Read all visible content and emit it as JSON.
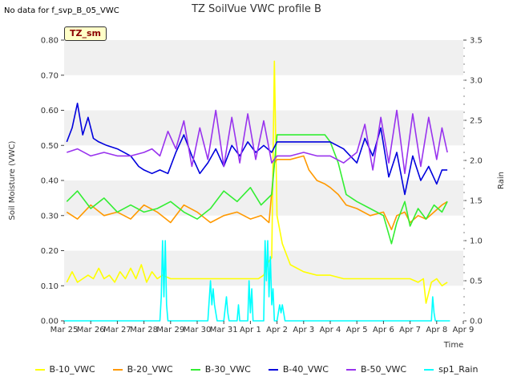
{
  "chart_data": {
    "type": "line",
    "title": "TZ SoilVue VWC profile B",
    "note": "No data for f_svp_B_05_VWC",
    "badge": "TZ_sm",
    "xlabel": "Time",
    "ylabel": "Soil Moisture (VWC)",
    "y2label": "Rain",
    "ylim": [
      0,
      0.8
    ],
    "y2lim": [
      0,
      3.5
    ],
    "xlim": [
      0,
      15
    ],
    "grid": "horizontal-bands",
    "legend_position": "bottom",
    "yticks": [
      "0.00",
      "0.10",
      "0.20",
      "0.30",
      "0.40",
      "0.50",
      "0.60",
      "0.70",
      "0.80"
    ],
    "y2ticks": [
      "0.0",
      "0.5",
      "1.0",
      "1.5",
      "2.0",
      "2.5",
      "3.0",
      "3.5"
    ],
    "xticks": [
      "Mar 25",
      "Mar 26",
      "Mar 27",
      "Mar 28",
      "Mar 29",
      "Mar 30",
      "Mar 31",
      "Apr 1",
      "Apr 2",
      "Apr 3",
      "Apr 4",
      "Apr 5",
      "Apr 6",
      "Apr 7",
      "Apr 8",
      "Apr 9"
    ],
    "series": [
      {
        "name": "B-10_VWC",
        "color": "#ffff00",
        "axis": "left",
        "x": [
          0.1,
          0.3,
          0.5,
          0.7,
          0.9,
          1.1,
          1.3,
          1.5,
          1.7,
          1.9,
          2.1,
          2.3,
          2.5,
          2.7,
          2.9,
          3.1,
          3.3,
          3.5,
          3.7,
          4.0,
          4.5,
          5.0,
          5.5,
          6.0,
          6.5,
          7.0,
          7.3,
          7.5,
          7.6,
          7.7,
          7.8,
          7.9,
          8.0,
          8.2,
          8.5,
          9.0,
          9.5,
          10.0,
          10.5,
          11.0,
          11.5,
          12.0,
          12.5,
          13.0,
          13.3,
          13.5,
          13.6,
          13.8,
          14.0,
          14.2,
          14.4
        ],
        "y": [
          0.11,
          0.14,
          0.11,
          0.12,
          0.13,
          0.12,
          0.15,
          0.12,
          0.13,
          0.11,
          0.14,
          0.12,
          0.15,
          0.12,
          0.16,
          0.11,
          0.14,
          0.12,
          0.13,
          0.12,
          0.12,
          0.12,
          0.12,
          0.12,
          0.12,
          0.12,
          0.12,
          0.13,
          0.15,
          0.17,
          0.18,
          0.74,
          0.3,
          0.22,
          0.16,
          0.14,
          0.13,
          0.13,
          0.12,
          0.12,
          0.12,
          0.12,
          0.12,
          0.12,
          0.11,
          0.12,
          0.05,
          0.11,
          0.12,
          0.1,
          0.11
        ]
      },
      {
        "name": "B-20_VWC",
        "color": "#ff9900",
        "axis": "left",
        "x": [
          0.1,
          0.5,
          1.0,
          1.5,
          2.0,
          2.5,
          3.0,
          3.5,
          4.0,
          4.5,
          5.0,
          5.5,
          6.0,
          6.5,
          7.0,
          7.4,
          7.7,
          7.9,
          8.0,
          8.5,
          9.0,
          9.2,
          9.5,
          9.8,
          10.0,
          10.3,
          10.6,
          11.0,
          11.5,
          12.0,
          12.3,
          12.5,
          12.8,
          13.0,
          13.3,
          13.6,
          13.9,
          14.2,
          14.4
        ],
        "y": [
          0.31,
          0.29,
          0.33,
          0.3,
          0.31,
          0.29,
          0.33,
          0.31,
          0.28,
          0.33,
          0.31,
          0.28,
          0.3,
          0.31,
          0.29,
          0.3,
          0.28,
          0.45,
          0.46,
          0.46,
          0.47,
          0.43,
          0.4,
          0.39,
          0.38,
          0.36,
          0.33,
          0.32,
          0.3,
          0.31,
          0.26,
          0.3,
          0.31,
          0.28,
          0.3,
          0.29,
          0.31,
          0.33,
          0.34
        ]
      },
      {
        "name": "B-30_VWC",
        "color": "#33ee33",
        "axis": "left",
        "x": [
          0.1,
          0.5,
          1.0,
          1.5,
          2.0,
          2.5,
          3.0,
          3.5,
          4.0,
          4.5,
          5.0,
          5.5,
          6.0,
          6.5,
          7.0,
          7.4,
          7.8,
          8.0,
          8.5,
          9.0,
          9.5,
          9.8,
          10.0,
          10.3,
          10.6,
          11.0,
          11.5,
          12.0,
          12.3,
          12.5,
          12.8,
          13.0,
          13.3,
          13.6,
          13.9,
          14.2,
          14.4
        ],
        "y": [
          0.34,
          0.37,
          0.32,
          0.35,
          0.31,
          0.33,
          0.31,
          0.32,
          0.34,
          0.31,
          0.29,
          0.32,
          0.37,
          0.34,
          0.38,
          0.33,
          0.36,
          0.53,
          0.53,
          0.53,
          0.53,
          0.53,
          0.51,
          0.45,
          0.36,
          0.34,
          0.32,
          0.3,
          0.22,
          0.28,
          0.34,
          0.27,
          0.32,
          0.29,
          0.33,
          0.31,
          0.34
        ]
      },
      {
        "name": "B-40_VWC",
        "color": "#0000dd",
        "axis": "left",
        "x": [
          0.1,
          0.3,
          0.5,
          0.7,
          0.9,
          1.1,
          1.3,
          1.6,
          2.0,
          2.5,
          2.8,
          3.0,
          3.3,
          3.6,
          3.9,
          4.2,
          4.5,
          4.8,
          5.1,
          5.4,
          5.7,
          6.0,
          6.3,
          6.6,
          6.9,
          7.2,
          7.5,
          7.8,
          8.0,
          8.5,
          9.0,
          9.5,
          10.0,
          10.5,
          11.0,
          11.3,
          11.6,
          11.9,
          12.2,
          12.5,
          12.8,
          13.1,
          13.4,
          13.7,
          14.0,
          14.2,
          14.4
        ],
        "y": [
          0.51,
          0.55,
          0.62,
          0.53,
          0.58,
          0.52,
          0.51,
          0.5,
          0.49,
          0.47,
          0.44,
          0.43,
          0.42,
          0.43,
          0.42,
          0.48,
          0.53,
          0.47,
          0.42,
          0.45,
          0.49,
          0.44,
          0.5,
          0.47,
          0.51,
          0.48,
          0.5,
          0.48,
          0.51,
          0.51,
          0.51,
          0.51,
          0.51,
          0.49,
          0.45,
          0.52,
          0.47,
          0.55,
          0.41,
          0.48,
          0.36,
          0.47,
          0.4,
          0.44,
          0.39,
          0.43,
          0.43
        ]
      },
      {
        "name": "B-50_VWC",
        "color": "#9933ee",
        "axis": "left",
        "x": [
          0.1,
          0.5,
          1.0,
          1.5,
          2.0,
          2.5,
          3.0,
          3.3,
          3.6,
          3.9,
          4.2,
          4.5,
          4.8,
          5.1,
          5.4,
          5.7,
          6.0,
          6.3,
          6.6,
          6.9,
          7.2,
          7.5,
          7.8,
          8.0,
          8.5,
          9.0,
          9.5,
          10.0,
          10.5,
          11.0,
          11.3,
          11.6,
          11.9,
          12.2,
          12.5,
          12.8,
          13.1,
          13.4,
          13.7,
          14.0,
          14.2,
          14.4
        ],
        "y": [
          0.48,
          0.49,
          0.47,
          0.48,
          0.47,
          0.47,
          0.48,
          0.49,
          0.47,
          0.54,
          0.49,
          0.57,
          0.44,
          0.55,
          0.46,
          0.6,
          0.44,
          0.58,
          0.45,
          0.59,
          0.46,
          0.57,
          0.45,
          0.47,
          0.47,
          0.48,
          0.47,
          0.47,
          0.45,
          0.48,
          0.56,
          0.43,
          0.58,
          0.45,
          0.6,
          0.42,
          0.59,
          0.44,
          0.58,
          0.46,
          0.55,
          0.48
        ]
      },
      {
        "name": "sp1_Rain",
        "color": "#00ffff",
        "axis": "right",
        "x": [
          0,
          3.6,
          3.65,
          3.7,
          3.75,
          3.8,
          3.85,
          3.9,
          5.4,
          5.5,
          5.55,
          5.6,
          5.65,
          5.75,
          6.0,
          6.1,
          6.15,
          6.2,
          6.5,
          6.55,
          6.6,
          6.9,
          6.95,
          7.0,
          7.05,
          7.1,
          7.5,
          7.55,
          7.6,
          7.65,
          7.7,
          7.75,
          7.8,
          7.85,
          7.9,
          8.0,
          8.1,
          8.15,
          8.2,
          8.25,
          8.3,
          13.8,
          13.85,
          13.9,
          13.95,
          14.5
        ],
        "y": [
          0,
          0,
          0.3,
          1.0,
          0.3,
          1.0,
          0.2,
          0,
          0,
          0.5,
          0.2,
          0.4,
          0.2,
          0,
          0,
          0.3,
          0.1,
          0,
          0,
          0.2,
          0,
          0,
          0.5,
          0.1,
          0.4,
          0,
          0,
          1.0,
          0.5,
          1.0,
          0.3,
          0.8,
          0.2,
          0.4,
          0,
          0,
          0.2,
          0.1,
          0.2,
          0.1,
          0,
          0,
          0.3,
          0.1,
          0,
          0
        ]
      }
    ]
  }
}
